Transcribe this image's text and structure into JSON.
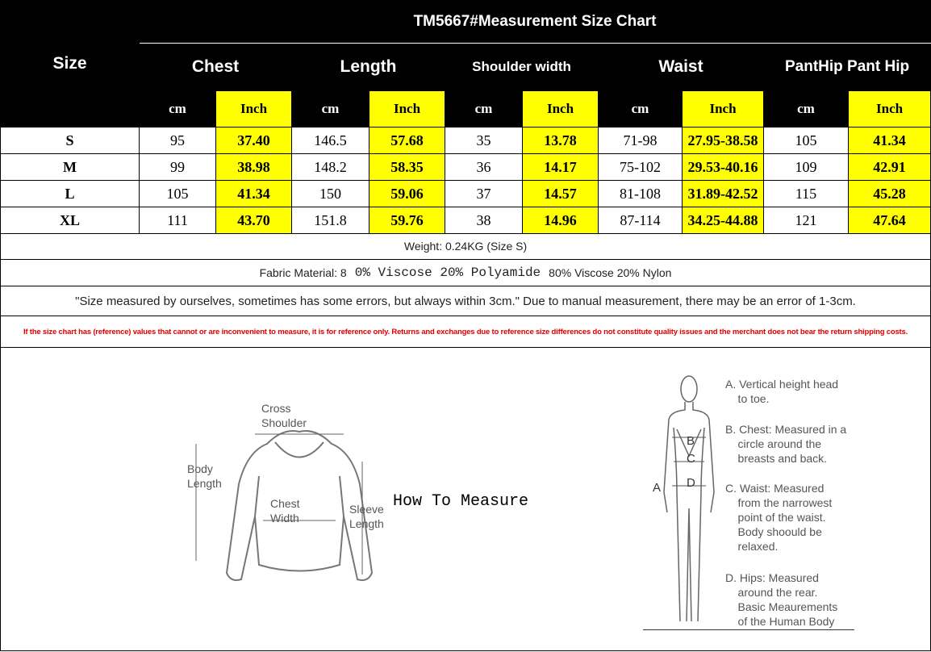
{
  "title": "TM5667#Measurement Size Chart",
  "size_header": "Size",
  "groups": [
    "Chest",
    "Length",
    "Shoulder width",
    "Waist",
    "PantHip Pant Hip"
  ],
  "units": {
    "cm": "cm",
    "inch": "Inch"
  },
  "rows": [
    {
      "size": "S",
      "values": [
        "95",
        "37.40",
        "146.5",
        "57.68",
        "35",
        "13.78",
        "71-98",
        "27.95-38.58",
        "105",
        "41.34"
      ]
    },
    {
      "size": "M",
      "values": [
        "99",
        "38.98",
        "148.2",
        "58.35",
        "36",
        "14.17",
        "75-102",
        "29.53-40.16",
        "109",
        "42.91"
      ]
    },
    {
      "size": "L",
      "values": [
        "105",
        "41.34",
        "150",
        "59.06",
        "37",
        "14.57",
        "81-108",
        "31.89-42.52",
        "115",
        "45.28"
      ]
    },
    {
      "size": "XL",
      "values": [
        "111",
        "43.70",
        "151.8",
        "59.76",
        "38",
        "14.96",
        "87-114",
        "34.25-44.88",
        "121",
        "47.64"
      ]
    }
  ],
  "weight": "Weight: 0.24KG (Size S)",
  "fabric": {
    "label": "Fabric Material: 8",
    "mono": "0% Viscose 20% Polyamide",
    "tail": "80% Viscose 20% Nylon"
  },
  "note": "\"Size measured by ourselves, sometimes has some errors, but always within 3cm.\" Due to manual measurement, there may be an error of 1-3cm.",
  "disclaimer": "If the size chart has (reference) values that cannot or are inconvenient to measure, it is for reference only. Returns and exchanges due to reference size differences do not constitute quality issues and the merchant does not bear the return shipping costs.",
  "how_to_measure": "How To Measure",
  "garment_labels": {
    "cross_shoulder": "Cross\nShoulder",
    "body_length": "Body\nLength",
    "chest_width": "Chest\nWidth",
    "sleeve_length": "Sleeve\nLength"
  },
  "body_markers": [
    "A",
    "B",
    "C",
    "D"
  ],
  "body_notes": [
    "A. Vertical height head\n    to toe.",
    "B. Chest: Measured in a\n    circle around the\n    breasts and back.",
    "C. Waist: Measured\n    from the narrowest\n    point of the waist.\n    Body shoould be\n    relaxed.",
    "D. Hips: Measured\n    around the rear.\n    Basic Meaurements\n    of the Human Body"
  ],
  "colors": {
    "highlight": "#ffff00",
    "header": "#000000",
    "disclaimer": "#e00000"
  }
}
